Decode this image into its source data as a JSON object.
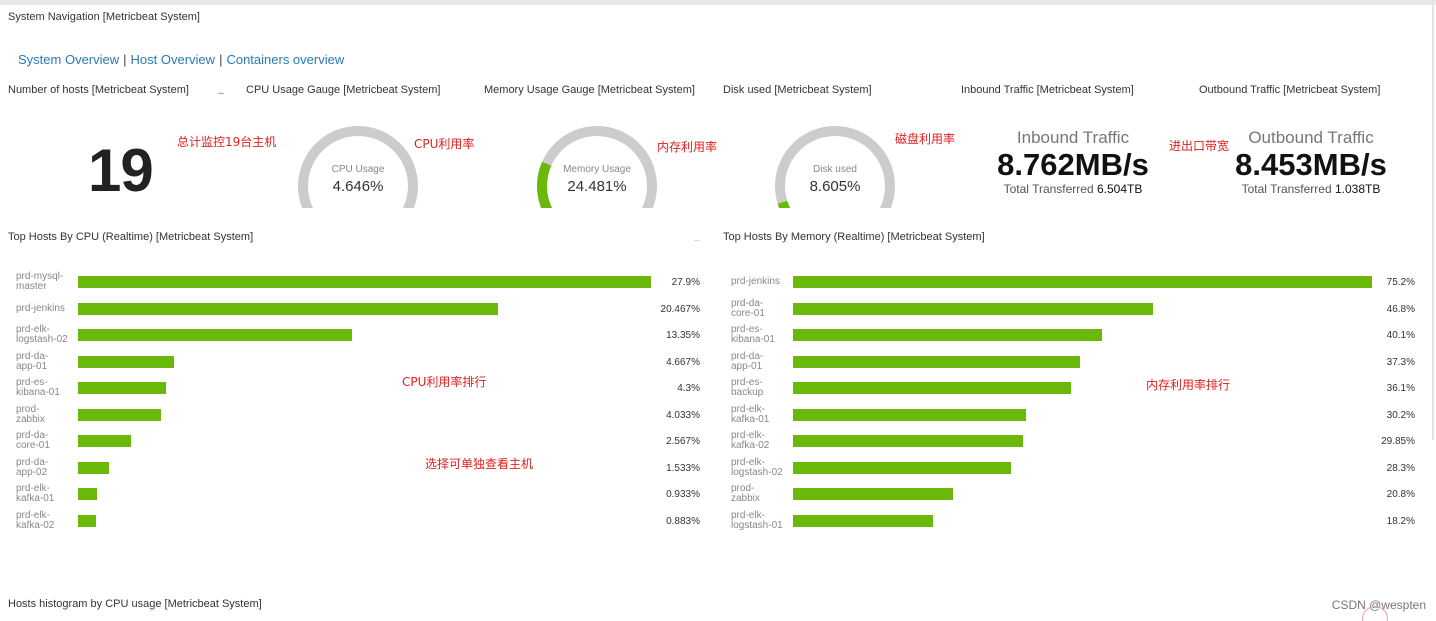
{
  "header": {
    "system_navigation_title": "System Navigation [Metricbeat System]"
  },
  "nav": {
    "links": [
      "System Overview",
      "Host Overview",
      "Containers overview"
    ],
    "separator": "|"
  },
  "panels": {
    "hosts_title": "Number of hosts [Metricbeat System]",
    "cpu_gauge_title": "CPU Usage Gauge [Metricbeat System]",
    "memory_gauge_title": "Memory Usage Gauge [Metricbeat System]",
    "disk_title": "Disk used [Metricbeat System]",
    "inbound_title": "Inbound Traffic [Metricbeat System]",
    "outbound_title": "Outbound Traffic [Metricbeat System]",
    "top_cpu_title": "Top Hosts By CPU (Realtime) [Metricbeat System]",
    "top_memory_title": "Top Hosts By Memory (Realtime) [Metricbeat System]",
    "histogram_title": "Hosts histogram by CPU usage [Metricbeat System]",
    "more_dots": "..."
  },
  "hosts": {
    "count": "19"
  },
  "gauges": {
    "cpu": {
      "label": "CPU Usage",
      "value_text": "4.646%",
      "fraction": 0.04646
    },
    "memory": {
      "label": "Memory Usage",
      "value_text": "24.481%",
      "fraction": 0.24481
    },
    "disk": {
      "label": "Disk used",
      "value_text": "8.605%",
      "fraction": 0.08605
    },
    "track_color": "#cccccc",
    "fill_color": "#6ab90a"
  },
  "traffic": {
    "inbound": {
      "title": "Inbound Traffic",
      "value": "8.762MB/s",
      "sub_prefix": "Total Transferred",
      "sub_value": "6.504TB"
    },
    "outbound": {
      "title": "Outbound Traffic",
      "value": "8.453MB/s",
      "sub_prefix": "Total Transferred",
      "sub_value": "1.038TB"
    }
  },
  "annotations": {
    "hosts": "总计监控19台主机",
    "cpu": "CPU利用率",
    "memory": "内存利用率",
    "disk": "磁盘利用率",
    "traffic": "进出口带宽",
    "cpu_rank": "CPU利用率排行",
    "select_host": "选择可单独查看主机",
    "memory_rank": "内存利用率排行"
  },
  "top_cpu": {
    "bar_color": "#6ab90a",
    "rows": [
      {
        "host": [
          "prd-mysql-",
          "master"
        ],
        "value": 27.9,
        "text": "27.9%"
      },
      {
        "host": [
          "prd-jenkins"
        ],
        "value": 20.467,
        "text": "20.467%"
      },
      {
        "host": [
          "prd-elk-",
          "logstash-02"
        ],
        "value": 13.35,
        "text": "13.35%"
      },
      {
        "host": [
          "prd-da-",
          "app-01"
        ],
        "value": 4.667,
        "text": "4.667%"
      },
      {
        "host": [
          "prd-es-",
          "kibana-01"
        ],
        "value": 4.3,
        "text": "4.3%"
      },
      {
        "host": [
          "prod-",
          "zabbix"
        ],
        "value": 4.033,
        "text": "4.033%"
      },
      {
        "host": [
          "prd-da-",
          "core-01"
        ],
        "value": 2.567,
        "text": "2.567%"
      },
      {
        "host": [
          "prd-da-",
          "app-02"
        ],
        "value": 1.533,
        "text": "1.533%"
      },
      {
        "host": [
          "prd-elk-",
          "kafka-01"
        ],
        "value": 0.933,
        "text": "0.933%"
      },
      {
        "host": [
          "prd-elk-",
          "kafka-02"
        ],
        "value": 0.883,
        "text": "0.883%"
      }
    ]
  },
  "top_memory": {
    "bar_color": "#6ab90a",
    "rows": [
      {
        "host": [
          "prd-jenkins"
        ],
        "value": 75.2,
        "text": "75.2%"
      },
      {
        "host": [
          "prd-da-",
          "core-01"
        ],
        "value": 46.8,
        "text": "46.8%"
      },
      {
        "host": [
          "prd-es-",
          "kibana-01"
        ],
        "value": 40.1,
        "text": "40.1%"
      },
      {
        "host": [
          "prd-da-",
          "app-01"
        ],
        "value": 37.3,
        "text": "37.3%"
      },
      {
        "host": [
          "prd-es-",
          "backup"
        ],
        "value": 36.1,
        "text": "36.1%"
      },
      {
        "host": [
          "prd-elk-",
          "kafka-01"
        ],
        "value": 30.2,
        "text": "30.2%"
      },
      {
        "host": [
          "prd-elk-",
          "kafka-02"
        ],
        "value": 29.85,
        "text": "29.85%"
      },
      {
        "host": [
          "prd-elk-",
          "logstash-02"
        ],
        "value": 28.3,
        "text": "28.3%"
      },
      {
        "host": [
          "prod-",
          "zabbix"
        ],
        "value": 20.8,
        "text": "20.8%"
      },
      {
        "host": [
          "prd-elk-",
          "logstash-01"
        ],
        "value": 18.2,
        "text": "18.2%"
      }
    ]
  },
  "watermark": "CSDN @wespten"
}
